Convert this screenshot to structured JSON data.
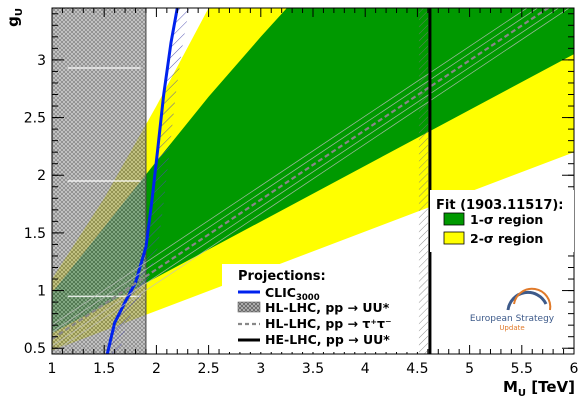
{
  "chart_data": {
    "type": "line",
    "xlabel": "M",
    "xlabel_sub": "U",
    "xlabel_unit": "[TeV]",
    "ylabel": "g",
    "ylabel_sub": "U",
    "xlim": [
      1,
      6
    ],
    "ylim": [
      0.45,
      3.45
    ],
    "xticks": [
      1,
      1.5,
      2,
      2.5,
      3,
      3.5,
      4,
      4.5,
      5,
      5.5,
      6
    ],
    "xtick_labels": [
      "1",
      "1.5",
      "2",
      "2.5",
      "3",
      "3.5",
      "4",
      "4.5",
      "5",
      "5.5",
      "6"
    ],
    "yticks": [
      0.5,
      1,
      1.5,
      2,
      2.5,
      3
    ],
    "ytick_labels": [
      "0.5",
      "1",
      "1.5",
      "2",
      "2.5",
      "3"
    ],
    "fit_legend": {
      "title": "Fit (1903.11517):",
      "entries": [
        {
          "label": "1-σ region",
          "color": "#009900"
        },
        {
          "label": "2-σ region",
          "color": "#ffff00"
        }
      ]
    },
    "projection_legend": {
      "title": "Projections:",
      "entries": [
        {
          "label": "CLIC",
          "sub": "3000",
          "style": "clic",
          "color": "#0022ee"
        },
        {
          "label": "HL-LHC, pp → UU*",
          "style": "hatch"
        },
        {
          "label": "HL-LHC, pp → τ⁺τ⁻",
          "style": "dashed"
        },
        {
          "label": "HE-LHC, pp → UU*",
          "style": "solid"
        }
      ]
    },
    "series": [
      {
        "name": "2-σ region",
        "type": "band",
        "lower": [
          [
            1,
            0.48
          ],
          [
            6,
            2.2
          ]
        ],
        "upper": [
          [
            1,
            1.1
          ],
          [
            1.5,
            1.8
          ],
          [
            2,
            2.6
          ],
          [
            2.5,
            3.45
          ]
        ]
      },
      {
        "name": "1-σ region",
        "type": "band",
        "lower": [
          [
            1,
            0.63
          ],
          [
            6,
            3.05
          ]
        ],
        "upper": [
          [
            1,
            0.98
          ],
          [
            1.5,
            1.55
          ],
          [
            2,
            2.12
          ],
          [
            2.5,
            2.68
          ],
          [
            3,
            3.2
          ],
          [
            3.25,
            3.45
          ]
        ]
      },
      {
        "name": "CLIC3000",
        "type": "line",
        "points": [
          [
            1.53,
            0.45
          ],
          [
            1.6,
            0.72
          ],
          [
            1.7,
            0.9
          ],
          [
            1.8,
            1.07
          ],
          [
            1.9,
            1.38
          ],
          [
            1.96,
            1.8
          ],
          [
            2.01,
            2.2
          ],
          [
            2.07,
            2.7
          ],
          [
            2.14,
            3.15
          ],
          [
            2.2,
            3.45
          ]
        ]
      },
      {
        "name": "HL-LHC, pp → UU*",
        "type": "vband",
        "x": [
          1,
          1.9
        ]
      },
      {
        "name": "HL-LHC, pp → τ⁺τ⁻",
        "type": "dashed",
        "points": [
          [
            1,
            0.58
          ],
          [
            6,
            3.6
          ]
        ]
      },
      {
        "name": "HE-LHC, pp → UU*",
        "type": "vline",
        "x": 4.62
      }
    ],
    "grid": false,
    "legend_position": "right"
  },
  "logo": {
    "line1": "European Strategy",
    "line2": "Update"
  }
}
